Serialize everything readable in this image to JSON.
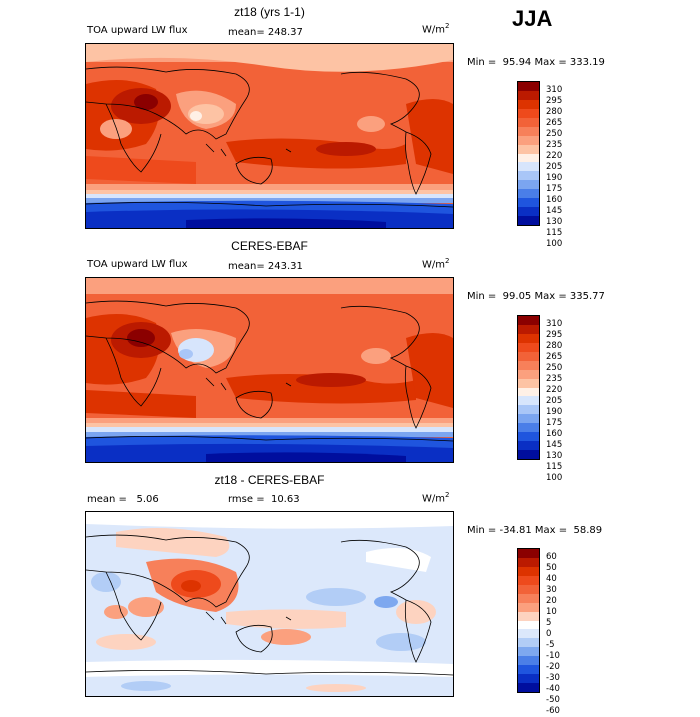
{
  "season": "JJA",
  "panels": [
    {
      "title": "zt18 (yrs 1-1)",
      "left_label": "TOA upward LW flux",
      "stat_label": "mean= 248.37",
      "units": "W/m",
      "units_sup": "2",
      "minmax": "Min =  95.94 Max = 333.19",
      "levels": [
        "310",
        "295",
        "280",
        "265",
        "250",
        "235",
        "220",
        "205",
        "190",
        "175",
        "160",
        "145",
        "130",
        "115",
        "100"
      ],
      "colors": [
        "#8b0000",
        "#bb1a00",
        "#dd3300",
        "#ee4a1c",
        "#f26238",
        "#f7805a",
        "#fba07e",
        "#fdc3a4",
        "#fff0e6",
        "#d7e5fc",
        "#a9c6f7",
        "#7ba5f0",
        "#4a7ee8",
        "#1f55de",
        "#0a2fc4",
        "#000e9e"
      ]
    },
    {
      "title": "CERES-EBAF",
      "left_label": "TOA upward LW flux",
      "stat_label": "mean= 243.31",
      "units": "W/m",
      "units_sup": "2",
      "minmax": "Min =  99.05 Max = 335.77",
      "levels": [
        "310",
        "295",
        "280",
        "265",
        "250",
        "235",
        "220",
        "205",
        "190",
        "175",
        "160",
        "145",
        "130",
        "115",
        "100"
      ],
      "colors": [
        "#8b0000",
        "#bb1a00",
        "#dd3300",
        "#ee4a1c",
        "#f26238",
        "#f7805a",
        "#fba07e",
        "#fdc3a4",
        "#fff0e6",
        "#d7e5fc",
        "#a9c6f7",
        "#7ba5f0",
        "#4a7ee8",
        "#1f55de",
        "#0a2fc4",
        "#000e9e"
      ]
    },
    {
      "title": "zt18 - CERES-EBAF",
      "left_label": "mean =   5.06",
      "stat_label": "rmse =  10.63",
      "units": "W/m",
      "units_sup": "2",
      "minmax": "Min = -34.81 Max =  58.89",
      "levels": [
        "60",
        "50",
        "40",
        "30",
        "20",
        "10",
        "5",
        "0",
        "-5",
        "-10",
        "-20",
        "-30",
        "-40",
        "-50",
        "-60"
      ],
      "colors": [
        "#8b0000",
        "#bb1a00",
        "#dd3300",
        "#ee4a1c",
        "#f26238",
        "#f7805a",
        "#fba07e",
        "#fdd3c0",
        "#ffffff",
        "#dce8fb",
        "#b2cdf6",
        "#7ea8ef",
        "#4b7fe7",
        "#1f55de",
        "#0a2fc4",
        "#000e9e"
      ]
    }
  ]
}
